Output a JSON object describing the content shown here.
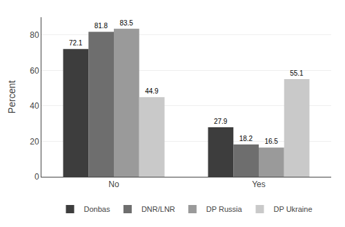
{
  "chart_data": {
    "type": "bar",
    "categories": [
      "No",
      "Yes"
    ],
    "series": [
      {
        "name": "Donbas",
        "color": "#3d3d3d",
        "values": [
          72.1,
          27.9
        ]
      },
      {
        "name": "DNR/LNR",
        "color": "#6e6e6e",
        "values": [
          81.8,
          18.2
        ]
      },
      {
        "name": "DP Russia",
        "color": "#9a9a9a",
        "values": [
          83.5,
          16.5
        ]
      },
      {
        "name": "DP Ukraine",
        "color": "#c9c9c9",
        "values": [
          44.9,
          55.1
        ]
      }
    ],
    "y_label": "Percent",
    "ylim": [
      0,
      90
    ],
    "yticks": [
      0,
      20,
      40,
      60,
      80
    ],
    "grid": true,
    "legend": "bottom",
    "data_labels": true
  }
}
